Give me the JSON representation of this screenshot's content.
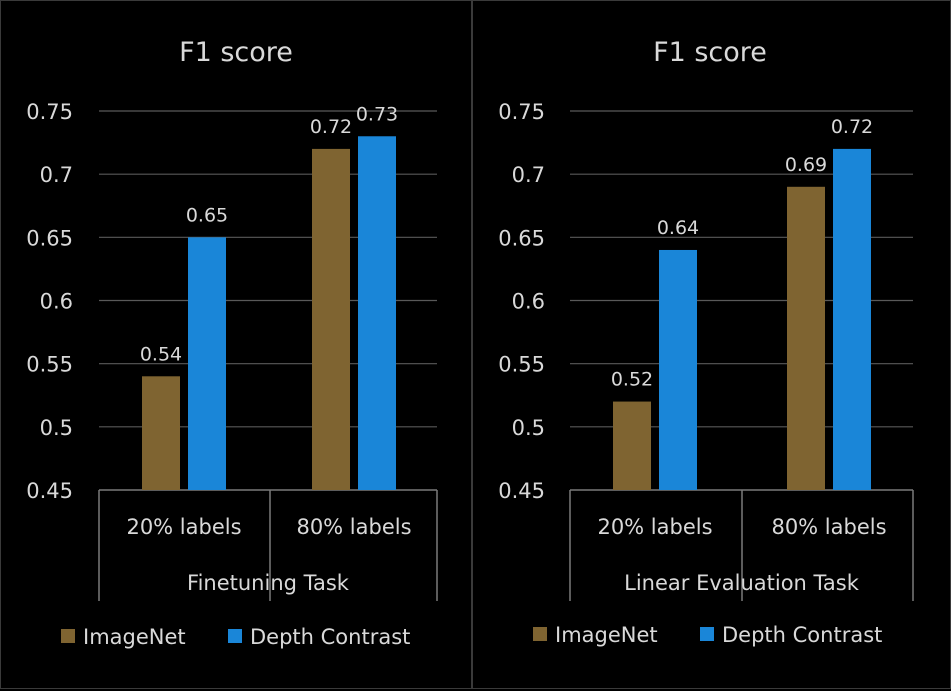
{
  "chart_data": [
    {
      "type": "bar",
      "title": "F1 score",
      "categories": [
        "20% labels",
        "80% labels"
      ],
      "group_label": "Finetuning Task",
      "series": [
        {
          "name": "ImageNet",
          "color": "#7f6431",
          "values": [
            0.54,
            0.72
          ]
        },
        {
          "name": "Depth Contrast",
          "color": "#1a86d8",
          "values": [
            0.65,
            0.73
          ]
        }
      ],
      "data_labels": [
        [
          "0.54",
          "0.72"
        ],
        [
          "0.65",
          "0.73"
        ]
      ],
      "ylim": [
        0.45,
        0.75
      ],
      "yticks": [
        "0.45",
        "0.5",
        "0.55",
        "0.6",
        "0.65",
        "0.7",
        "0.75"
      ],
      "grid": true,
      "legend": "bottom"
    },
    {
      "type": "bar",
      "title": "F1 score",
      "categories": [
        "20% labels",
        "80% labels"
      ],
      "group_label": "Linear Evaluation Task",
      "series": [
        {
          "name": "ImageNet",
          "color": "#7f6431",
          "values": [
            0.52,
            0.69
          ]
        },
        {
          "name": "Depth Contrast",
          "color": "#1a86d8",
          "values": [
            0.64,
            0.72
          ]
        }
      ],
      "data_labels": [
        [
          "0.52",
          "0.69"
        ],
        [
          "0.64",
          "0.72"
        ]
      ],
      "ylim": [
        0.45,
        0.75
      ],
      "yticks": [
        "0.45",
        "0.5",
        "0.55",
        "0.6",
        "0.65",
        "0.7",
        "0.75"
      ],
      "grid": true,
      "legend": "bottom"
    }
  ]
}
